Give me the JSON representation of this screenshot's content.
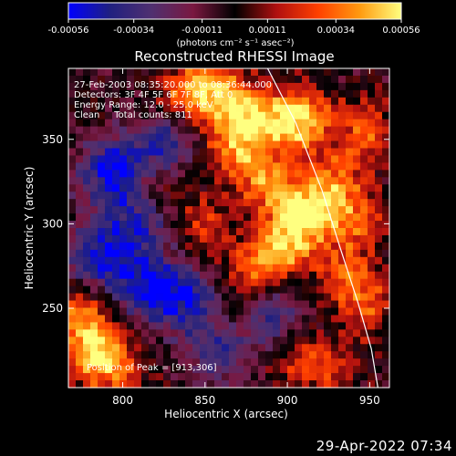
{
  "chart_data": {
    "type": "heatmap",
    "title": "Reconstructed RHESSI Image",
    "xlabel": "Heliocentric X (arcsec)",
    "ylabel": "Heliocentric Y (arcsec)",
    "xlim": [
      767,
      962
    ],
    "ylim": [
      203,
      392
    ],
    "x_ticks": [
      800,
      850,
      900,
      950
    ],
    "y_ticks": [
      250,
      300,
      350
    ],
    "colorbar": {
      "min": -0.00056,
      "max": 0.00056,
      "tick_values": [
        -0.00056,
        -0.00034,
        -0.00011,
        0.00011,
        0.00034,
        0.00056
      ],
      "tick_labels": [
        "-0.00056",
        "-0.00034",
        "-0.00011",
        "0.00011",
        "0.00034",
        "0.00056"
      ],
      "label": "(photons cm⁻² s⁻¹ asec⁻²)",
      "colormap": [
        "#0000ff",
        "#202080",
        "#503070",
        "#7a1840",
        "#000000",
        "#b01010",
        "#ff4000",
        "#ff9a10",
        "#ffff80"
      ]
    },
    "annotations": {
      "time_range": "27-Feb-2003 08:35:20.000 to 08:36:44.000",
      "detectors": "Detectors: 3F 4F 5F 6F 7F 8F, Att 0",
      "energy": "Energy Range: 12.0 - 25.0 keV",
      "clean": "Clean     Total counts: 811",
      "peak": "Position of Peak = [913,306]"
    },
    "peak_position": [
      913,
      306
    ],
    "limb_curve": {
      "color": "#ffffff",
      "points": [
        [
          888,
          392
        ],
        [
          905,
          360
        ],
        [
          921,
          320
        ],
        [
          932,
          286
        ],
        [
          943,
          253
        ],
        [
          951,
          226
        ],
        [
          955,
          203
        ]
      ]
    },
    "hotspots": [
      {
        "x": 908,
        "y": 362,
        "amp": 1.0
      },
      {
        "x": 912,
        "y": 306,
        "amp": 1.0
      },
      {
        "x": 880,
        "y": 362,
        "amp": 0.85
      },
      {
        "x": 858,
        "y": 378,
        "amp": 0.75
      },
      {
        "x": 838,
        "y": 378,
        "amp": 0.6
      },
      {
        "x": 887,
        "y": 325,
        "amp": 0.7
      },
      {
        "x": 866,
        "y": 345,
        "amp": 0.6
      },
      {
        "x": 897,
        "y": 287,
        "amp": 0.75
      },
      {
        "x": 880,
        "y": 270,
        "amp": 0.6
      },
      {
        "x": 930,
        "y": 325,
        "amp": 0.6
      },
      {
        "x": 943,
        "y": 300,
        "amp": 0.55
      },
      {
        "x": 935,
        "y": 268,
        "amp": 0.55
      },
      {
        "x": 948,
        "y": 355,
        "amp": 0.6
      },
      {
        "x": 950,
        "y": 250,
        "amp": 0.45
      },
      {
        "x": 780,
        "y": 226,
        "amp": 0.75
      },
      {
        "x": 795,
        "y": 215,
        "amp": 0.6
      },
      {
        "x": 775,
        "y": 248,
        "amp": 0.55
      },
      {
        "x": 820,
        "y": 325,
        "amp": 0.4
      },
      {
        "x": 865,
        "y": 240,
        "amp": 0.4
      },
      {
        "x": 905,
        "y": 220,
        "amp": 0.35
      },
      {
        "x": 850,
        "y": 300,
        "amp": 0.45
      },
      {
        "x": 925,
        "y": 215,
        "amp": 0.45
      }
    ],
    "coldspots": [
      {
        "x": 795,
        "y": 330,
        "amp": 0.9
      },
      {
        "x": 785,
        "y": 280,
        "amp": 0.8
      },
      {
        "x": 815,
        "y": 262,
        "amp": 0.8
      },
      {
        "x": 840,
        "y": 255,
        "amp": 0.7
      },
      {
        "x": 825,
        "y": 345,
        "amp": 0.75
      },
      {
        "x": 860,
        "y": 228,
        "amp": 0.7
      },
      {
        "x": 890,
        "y": 245,
        "amp": 0.65
      },
      {
        "x": 810,
        "y": 300,
        "amp": 0.6
      }
    ]
  },
  "footer": {
    "date": "29-Apr-2022 07:34"
  }
}
